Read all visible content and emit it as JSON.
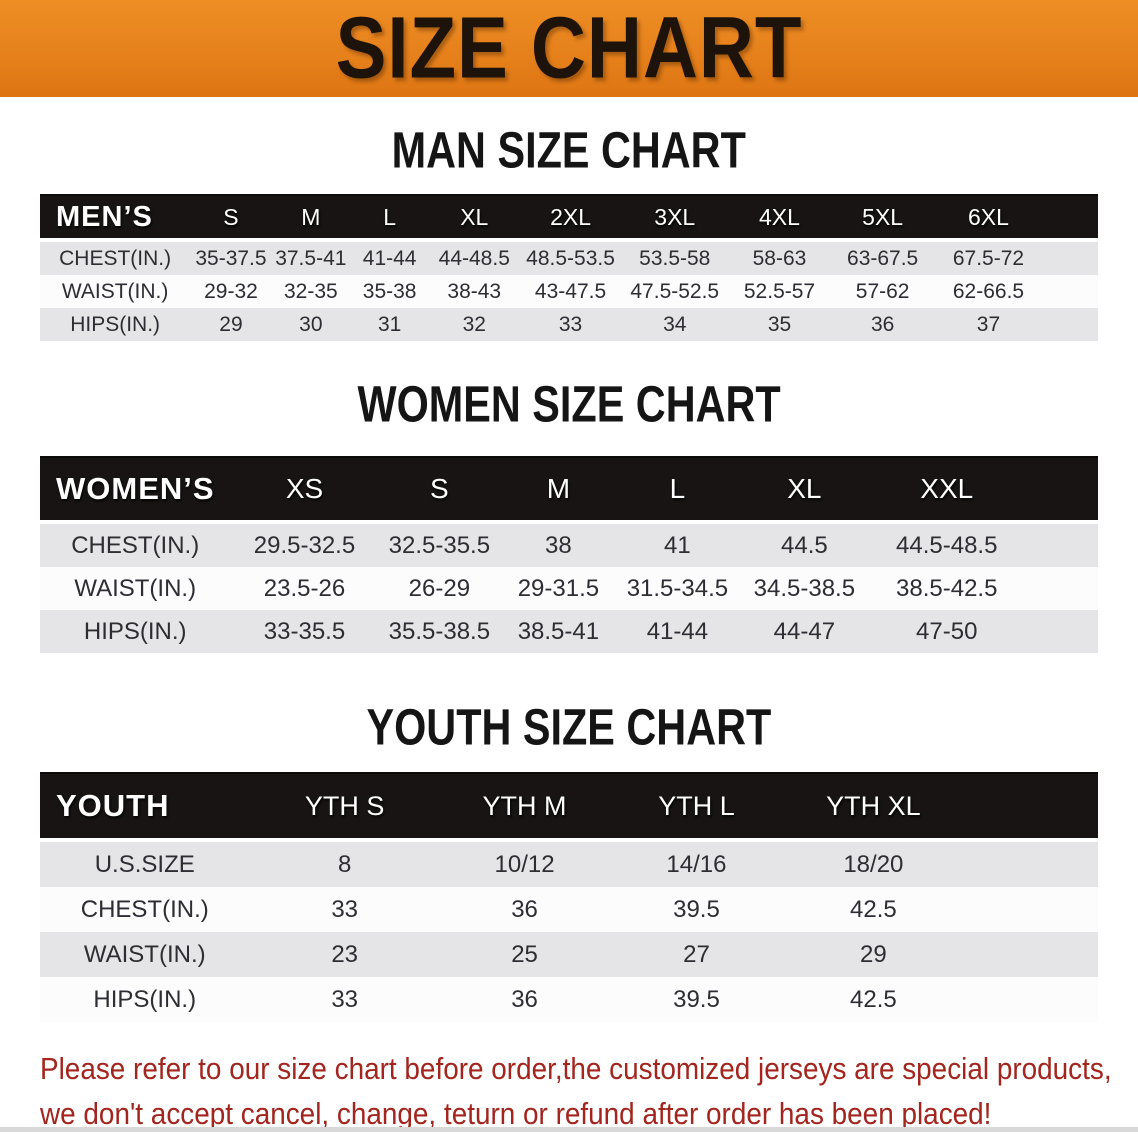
{
  "banner": {
    "title": "SIZE CHART"
  },
  "colors": {
    "banner_orange": "#E6811B",
    "header_black": "#171413",
    "row_gray": "#E5E5E7",
    "row_white": "#FCFCFC",
    "note_red": "#A3251E"
  },
  "sections": [
    {
      "id": "mens",
      "heading": "MAN SIZE CHART",
      "table": {
        "corner_label": "MEN’S",
        "columns": [
          "S",
          "M",
          "L",
          "XL",
          "2XL",
          "3XL",
          "4XL",
          "5XL",
          "6XL"
        ],
        "rows": [
          {
            "label": "CHEST(IN.)",
            "values": [
              "35-37.5",
              "37.5-41",
              "41-44",
              "44-48.5",
              "48.5-53.5",
              "53.5-58",
              "58-63",
              "63-67.5",
              "67.5-72"
            ]
          },
          {
            "label": "WAIST(IN.)",
            "values": [
              "29-32",
              "32-35",
              "35-38",
              "38-43",
              "43-47.5",
              "47.5-52.5",
              "52.5-57",
              "57-62",
              "62-66.5"
            ]
          },
          {
            "label": "HIPS(IN.)",
            "values": [
              "29",
              "30",
              "31",
              "32",
              "33",
              "34",
              "35",
              "36",
              "37"
            ]
          }
        ]
      }
    },
    {
      "id": "womens",
      "heading": "WOMEN SIZE CHART",
      "table": {
        "corner_label": "WOMEN’S",
        "columns": [
          "XS",
          "S",
          "M",
          "L",
          "XL",
          "XXL"
        ],
        "rows": [
          {
            "label": "CHEST(IN.)",
            "values": [
              "29.5-32.5",
              "32.5-35.5",
              "38",
              "41",
              "44.5",
              "44.5-48.5"
            ]
          },
          {
            "label": "WAIST(IN.)",
            "values": [
              "23.5-26",
              "26-29",
              "29-31.5",
              "31.5-34.5",
              "34.5-38.5",
              "38.5-42.5"
            ]
          },
          {
            "label": "HIPS(IN.)",
            "values": [
              "33-35.5",
              "35.5-38.5",
              "38.5-41",
              "41-44",
              "44-47",
              "47-50"
            ]
          }
        ]
      }
    },
    {
      "id": "youth",
      "heading": "YOUTH SIZE CHART",
      "table": {
        "corner_label": "YOUTH",
        "columns": [
          "YTH S",
          "YTH M",
          "YTH L",
          "YTH XL"
        ],
        "rows": [
          {
            "label": "U.S.SIZE",
            "values": [
              "8",
              "10/12",
              "14/16",
              "18/20"
            ]
          },
          {
            "label": "CHEST(IN.)",
            "values": [
              "33",
              "36",
              "39.5",
              "42.5"
            ]
          },
          {
            "label": "WAIST(IN.)",
            "values": [
              "23",
              "25",
              "27",
              "29"
            ]
          },
          {
            "label": "HIPS(IN.)",
            "values": [
              "33",
              "36",
              "39.5",
              "42.5"
            ]
          }
        ]
      }
    }
  ],
  "footer_note": {
    "line1": "Please refer to our size chart before order,the customized jerseys are special products,",
    "line2": "we don't accept cancel, change, teturn or refund after order has been placed!"
  }
}
